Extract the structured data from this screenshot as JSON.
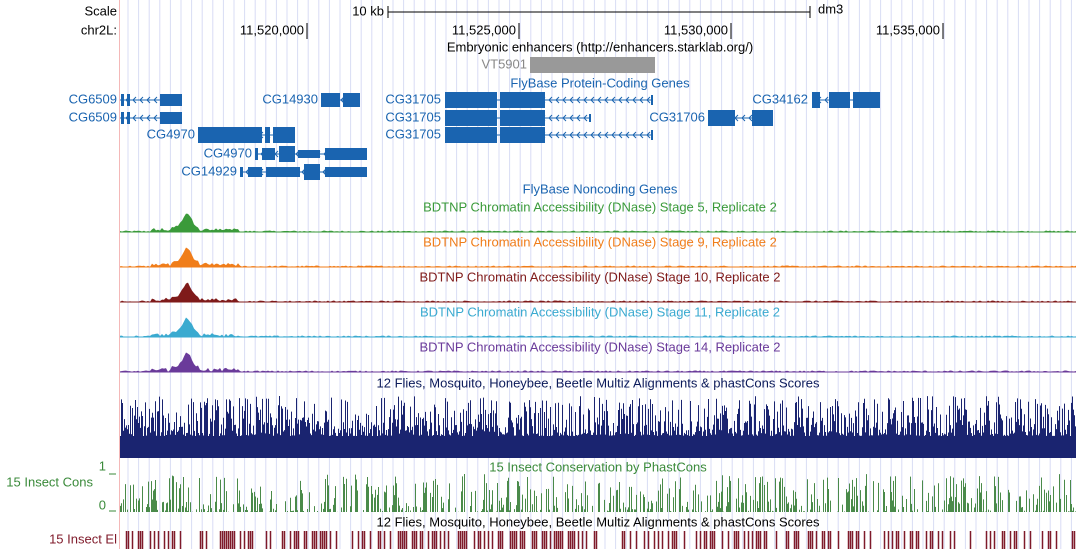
{
  "header": {
    "scale_label": "Scale",
    "scale_size": "10 kb",
    "assembly": "dm3",
    "chrom_label": "chr2L:",
    "ruler_ticks": [
      "11,520,000",
      "11,525,000",
      "11,530,000",
      "11,535,000"
    ]
  },
  "enhancers": {
    "title": "Embryonic enhancers (http://enhancers.starklab.org/)",
    "items": [
      "VT5901"
    ]
  },
  "protein_genes": {
    "title": "FlyBase Protein-Coding Genes",
    "labels": [
      "CG6509",
      "CG14930",
      "CG31705",
      "CG34162",
      "CG6509",
      "CG31705",
      "CG31706",
      "CG4970",
      "CG31705",
      "CG4970",
      "CG14929"
    ]
  },
  "noncoding_genes": {
    "title": "FlyBase Noncoding Genes"
  },
  "dnase_tracks": [
    {
      "title": "BDTNP Chromatin Accessibility (DNase) Stage 5, Replicate 2",
      "color": "#3a9a3a"
    },
    {
      "title": "BDTNP Chromatin Accessibility (DNase) Stage 9, Replicate 2",
      "color": "#f07d1a"
    },
    {
      "title": "BDTNP Chromatin Accessibility (DNase) Stage 10, Replicate 2",
      "color": "#7f1a1a"
    },
    {
      "title": "BDTNP Chromatin Accessibility (DNase) Stage 11, Replicate 2",
      "color": "#3aaad0"
    },
    {
      "title": "BDTNP Chromatin Accessibility (DNase) Stage 14, Replicate 2",
      "color": "#6a3a9a"
    }
  ],
  "multiz": {
    "title": "12 Flies, Mosquito, Honeybee, Beetle Multiz Alignments & phastCons Scores"
  },
  "conservation": {
    "title": "15 Insect Conservation by PhastCons",
    "side_label": "15 Insect Cons",
    "max_label": "1",
    "min_label": "0"
  },
  "elements": {
    "title": "12 Flies, Mosquito, Honeybee, Beetle Multiz Alignments & phastCons Scores",
    "side_label": "15 Insect El"
  }
}
